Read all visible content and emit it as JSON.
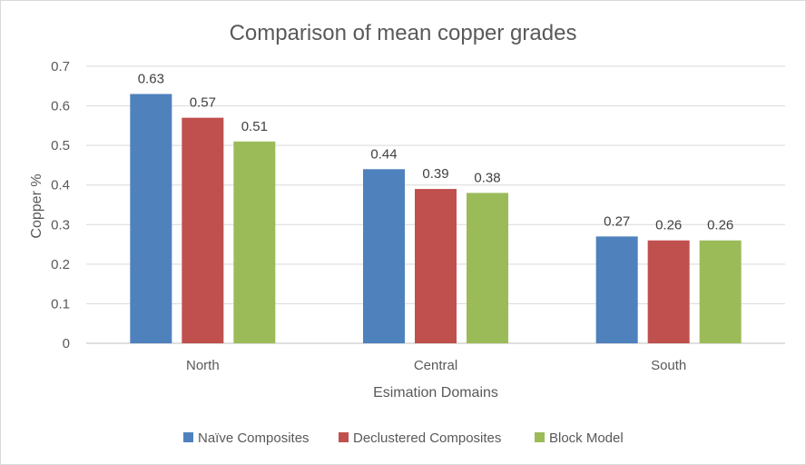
{
  "chart_data": {
    "type": "bar",
    "title": "Comparison of mean copper grades",
    "xlabel": "Esimation Domains",
    "ylabel": "Copper %",
    "categories": [
      "North",
      "Central",
      "South"
    ],
    "series": [
      {
        "name": "Naïve Composites",
        "color": "#4f81bd",
        "values": [
          0.63,
          0.44,
          0.27
        ]
      },
      {
        "name": "Declustered Composites",
        "color": "#c0504d",
        "values": [
          0.57,
          0.39,
          0.26
        ]
      },
      {
        "name": "Block Model",
        "color": "#9bbb59",
        "values": [
          0.51,
          0.38,
          0.26
        ]
      }
    ],
    "ylim": [
      0,
      0.7
    ],
    "yticks": [
      "0",
      "0.1",
      "0.2",
      "0.3",
      "0.4",
      "0.5",
      "0.6",
      "0.7"
    ],
    "grid": true,
    "legend": "bottom",
    "data_labels": true
  }
}
